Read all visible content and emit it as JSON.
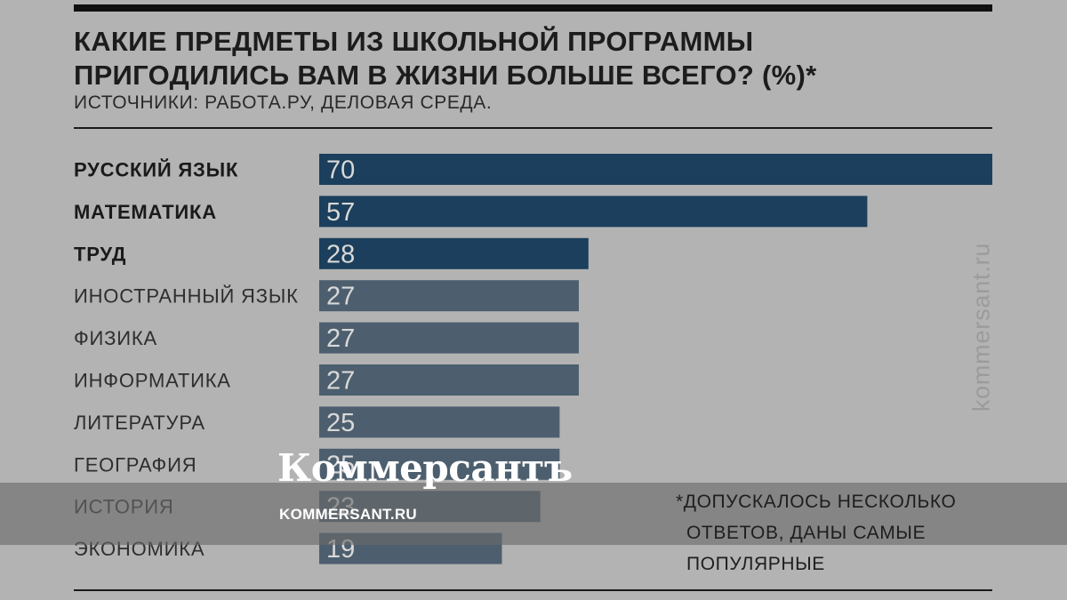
{
  "chart_data": {
    "type": "bar",
    "orientation": "horizontal",
    "title": "КАКИЕ ПРЕДМЕТЫ ИЗ ШКОЛЬНОЙ ПРОГРАММЫ ПРИГОДИЛИСЬ ВАМ В ЖИЗНИ БОЛЬШЕ ВСЕГО? (%)*",
    "subtitle": "ИСТОЧНИКИ: РАБОТА.РУ, ДЕЛОВАЯ СРЕДА.",
    "categories": [
      "РУССКИЙ ЯЗЫК",
      "МАТЕМАТИКА",
      "ТРУД",
      "ИНОСТРАННЫЙ ЯЗЫК",
      "ФИЗИКА",
      "ИНФОРМАТИКА",
      "ЛИТЕРАТУРА",
      "ГЕОГРАФИЯ",
      "ИСТОРИЯ",
      "ЭКОНОМИКА"
    ],
    "values": [
      70,
      57,
      28,
      27,
      27,
      27,
      25,
      25,
      23,
      19
    ],
    "highlighted": [
      true,
      true,
      true,
      false,
      false,
      false,
      false,
      false,
      false,
      false
    ],
    "xlim": [
      0,
      70
    ],
    "grid": false,
    "colors": {
      "highlight": "#1b3f5c",
      "regular": "#4d5f6e",
      "value_text": "#d9d9d9"
    },
    "footnote": [
      "*ДОПУСКАЛОСЬ НЕСКОЛЬКО",
      "ОТВЕТОВ, ДАНЫ САМЫЕ",
      "ПОПУЛЯРНЫЕ"
    ]
  },
  "watermark": {
    "vertical_text": "kommersant.ru",
    "brand": "Коммерсантъ",
    "url": "KOMMERSANT.RU"
  }
}
